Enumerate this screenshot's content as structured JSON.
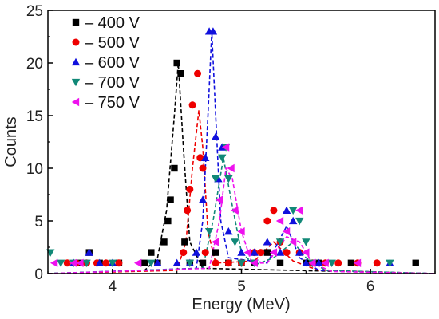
{
  "chart_data": {
    "type": "scatter",
    "title": "",
    "xlabel": "Energy (MeV)",
    "ylabel": "Counts",
    "xlim": [
      3.5,
      6.5
    ],
    "ylim": [
      0,
      25
    ],
    "xticks": [
      4,
      5,
      6
    ],
    "xtick_labels": [
      "4",
      "5",
      "6"
    ],
    "yticks": [
      0,
      5,
      10,
      15,
      20,
      25
    ],
    "ytick_labels": [
      "0",
      "5",
      "10",
      "15",
      "20",
      "25"
    ],
    "legend_position": "top-left",
    "grid": false,
    "series": [
      {
        "name": "400 V",
        "legend_label": "– 400 V",
        "color": "#000000",
        "marker": "square",
        "points": [
          [
            3.75,
            1
          ],
          [
            3.82,
            2
          ],
          [
            3.9,
            1
          ],
          [
            4.05,
            1
          ],
          [
            4.25,
            1
          ],
          [
            4.3,
            2
          ],
          [
            4.35,
            1
          ],
          [
            4.4,
            3
          ],
          [
            4.43,
            5
          ],
          [
            4.45,
            7
          ],
          [
            4.48,
            10
          ],
          [
            4.5,
            20
          ],
          [
            4.53,
            19
          ],
          [
            4.56,
            3
          ],
          [
            4.6,
            1
          ],
          [
            4.7,
            1
          ],
          [
            4.8,
            2
          ],
          [
            4.9,
            1
          ],
          [
            5.0,
            1
          ],
          [
            5.1,
            1
          ],
          [
            5.2,
            2
          ],
          [
            5.3,
            1
          ],
          [
            5.5,
            1
          ],
          [
            5.6,
            1
          ],
          [
            5.85,
            1
          ],
          [
            6.35,
            1
          ]
        ],
        "fit": [
          [
            3.5,
            0
          ],
          [
            4.25,
            0.3
          ],
          [
            4.35,
            1.5
          ],
          [
            4.42,
            6
          ],
          [
            4.48,
            15
          ],
          [
            4.51,
            20
          ],
          [
            4.55,
            12
          ],
          [
            4.6,
            3
          ],
          [
            4.7,
            0.5
          ],
          [
            6.5,
            0
          ]
        ]
      },
      {
        "name": "500 V",
        "legend_label": "– 500 V",
        "color": "#ee0000",
        "marker": "circle",
        "points": [
          [
            3.65,
            1
          ],
          [
            3.72,
            1
          ],
          [
            3.8,
            1
          ],
          [
            3.88,
            1
          ],
          [
            3.95,
            1
          ],
          [
            4.05,
            1
          ],
          [
            4.55,
            2
          ],
          [
            4.58,
            6
          ],
          [
            4.6,
            8
          ],
          [
            4.62,
            16
          ],
          [
            4.66,
            19
          ],
          [
            4.68,
            11
          ],
          [
            4.7,
            10
          ],
          [
            4.72,
            2
          ],
          [
            4.8,
            1
          ],
          [
            4.9,
            1
          ],
          [
            5.0,
            1
          ],
          [
            5.1,
            2
          ],
          [
            5.15,
            2
          ],
          [
            5.2,
            5
          ],
          [
            5.25,
            6
          ],
          [
            5.3,
            3
          ],
          [
            5.35,
            2
          ],
          [
            5.45,
            2
          ],
          [
            5.55,
            1
          ],
          [
            5.65,
            1
          ],
          [
            5.75,
            1
          ],
          [
            5.9,
            1
          ],
          [
            6.05,
            1
          ]
        ],
        "fit": [
          [
            3.5,
            0
          ],
          [
            4.5,
            0.3
          ],
          [
            4.57,
            3
          ],
          [
            4.62,
            10
          ],
          [
            4.67,
            15.5
          ],
          [
            4.7,
            12
          ],
          [
            4.74,
            4
          ],
          [
            4.8,
            1
          ],
          [
            5.1,
            1.2
          ],
          [
            5.25,
            3
          ],
          [
            5.4,
            1.2
          ],
          [
            5.6,
            0.3
          ],
          [
            6.5,
            0
          ]
        ]
      },
      {
        "name": "600 V",
        "legend_label": "– 600 V",
        "color": "#1010dd",
        "marker": "triangle-up",
        "points": [
          [
            3.7,
            1
          ],
          [
            3.82,
            2
          ],
          [
            3.9,
            1
          ],
          [
            4.0,
            1
          ],
          [
            4.35,
            1
          ],
          [
            4.5,
            1
          ],
          [
            4.6,
            1
          ],
          [
            4.65,
            2
          ],
          [
            4.7,
            7
          ],
          [
            4.72,
            11
          ],
          [
            4.75,
            23
          ],
          [
            4.78,
            23
          ],
          [
            4.8,
            13
          ],
          [
            4.82,
            9
          ],
          [
            4.85,
            12
          ],
          [
            4.9,
            4
          ],
          [
            5.0,
            2
          ],
          [
            5.1,
            2
          ],
          [
            5.2,
            3
          ],
          [
            5.3,
            2
          ],
          [
            5.35,
            6
          ],
          [
            5.4,
            5
          ],
          [
            5.45,
            2
          ],
          [
            5.5,
            1
          ],
          [
            5.6,
            1
          ],
          [
            6.15,
            1
          ]
        ],
        "fit": [
          [
            3.5,
            0
          ],
          [
            4.65,
            0.5
          ],
          [
            4.7,
            5
          ],
          [
            4.74,
            15
          ],
          [
            4.77,
            23
          ],
          [
            4.8,
            15
          ],
          [
            4.84,
            5
          ],
          [
            4.9,
            1.5
          ],
          [
            5.2,
            1
          ],
          [
            5.35,
            4.5
          ],
          [
            5.45,
            1.5
          ],
          [
            5.6,
            0.3
          ],
          [
            6.5,
            0
          ]
        ]
      },
      {
        "name": "700 V",
        "legend_label": "– 700 V",
        "color": "#118877",
        "marker": "triangle-down",
        "points": [
          [
            3.52,
            2
          ],
          [
            3.6,
            1
          ],
          [
            3.7,
            1
          ],
          [
            3.8,
            1
          ],
          [
            4.0,
            1
          ],
          [
            4.3,
            1
          ],
          [
            4.6,
            1
          ],
          [
            4.75,
            4
          ],
          [
            4.8,
            9
          ],
          [
            4.85,
            11
          ],
          [
            4.88,
            12
          ],
          [
            4.9,
            9
          ],
          [
            4.95,
            3
          ],
          [
            5.0,
            1
          ],
          [
            5.1,
            1
          ],
          [
            5.3,
            3
          ],
          [
            5.4,
            6
          ],
          [
            5.45,
            5
          ],
          [
            5.5,
            3
          ],
          [
            5.55,
            1
          ],
          [
            5.7,
            1
          ],
          [
            6.15,
            1
          ]
        ],
        "fit": [
          [
            3.5,
            0
          ],
          [
            4.7,
            0.5
          ],
          [
            4.78,
            5
          ],
          [
            4.86,
            11
          ],
          [
            4.92,
            7
          ],
          [
            5.0,
            2
          ],
          [
            5.1,
            0.8
          ],
          [
            5.25,
            1.5
          ],
          [
            5.4,
            3
          ],
          [
            5.5,
            1.5
          ],
          [
            5.65,
            0.3
          ],
          [
            6.5,
            0
          ]
        ]
      },
      {
        "name": "750 V",
        "legend_label": "– 750 V",
        "color": "#ee11ee",
        "marker": "triangle-left",
        "points": [
          [
            3.55,
            1
          ],
          [
            3.7,
            1
          ],
          [
            3.75,
            1
          ],
          [
            4.2,
            1
          ],
          [
            4.8,
            3
          ],
          [
            4.83,
            7
          ],
          [
            4.88,
            12
          ],
          [
            4.92,
            10
          ],
          [
            4.95,
            6
          ],
          [
            5.0,
            4
          ],
          [
            5.05,
            2
          ],
          [
            5.1,
            1
          ],
          [
            5.25,
            2
          ],
          [
            5.3,
            5
          ],
          [
            5.35,
            4
          ],
          [
            5.4,
            3
          ],
          [
            5.45,
            6
          ],
          [
            5.5,
            2
          ],
          [
            5.55,
            1
          ],
          [
            5.65,
            1
          ],
          [
            5.9,
            1
          ]
        ],
        "fit": [
          [
            3.5,
            0
          ],
          [
            4.75,
            0.5
          ],
          [
            4.83,
            5
          ],
          [
            4.88,
            10
          ],
          [
            4.93,
            9
          ],
          [
            5.0,
            4
          ],
          [
            5.08,
            1
          ],
          [
            5.2,
            1
          ],
          [
            5.35,
            3.5
          ],
          [
            5.45,
            3
          ],
          [
            5.55,
            1
          ],
          [
            5.7,
            0.2
          ],
          [
            6.5,
            0
          ]
        ]
      }
    ]
  }
}
